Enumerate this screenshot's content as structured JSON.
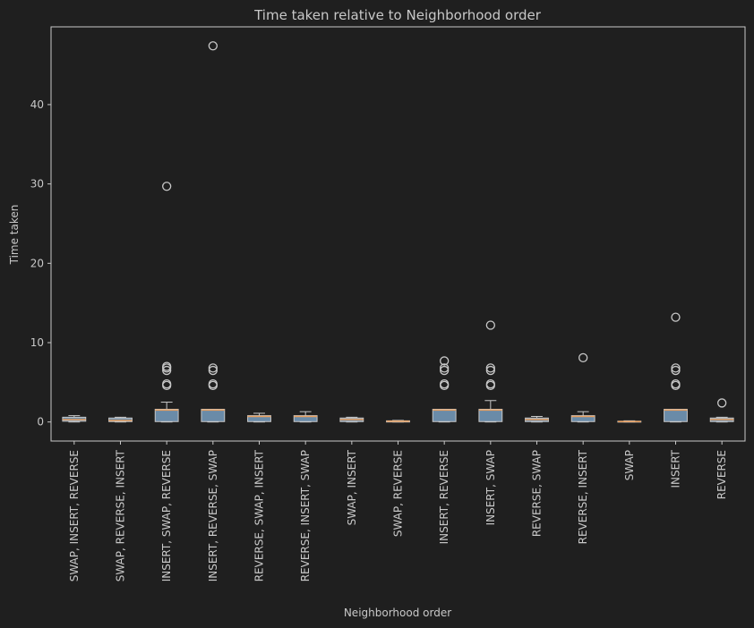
{
  "chart_data": {
    "type": "box",
    "title": "Time taken relative to Neighborhood order",
    "xlabel": "Neighborhood order",
    "ylabel": "Time taken",
    "ylim": [
      -2.4,
      49.8
    ],
    "yticks": [
      0,
      10,
      20,
      30,
      40
    ],
    "grid": false,
    "categories": [
      "SWAP, INSERT, REVERSE",
      "SWAP, REVERSE, INSERT",
      "INSERT, SWAP, REVERSE",
      "INSERT, REVERSE, SWAP",
      "REVERSE, SWAP, INSERT",
      "REVERSE, INSERT, SWAP",
      "SWAP, INSERT",
      "SWAP, REVERSE",
      "INSERT, REVERSE",
      "INSERT, SWAP",
      "REVERSE, SWAP",
      "REVERSE, INSERT",
      "SWAP",
      "INSERT",
      "REVERSE"
    ],
    "boxes": [
      {
        "whislo": 0.0,
        "q1": 0.1,
        "med": 0.3,
        "q3": 0.6,
        "whishi": 0.8,
        "fliers": []
      },
      {
        "whislo": 0.0,
        "q1": 0.05,
        "med": 0.2,
        "q3": 0.5,
        "whishi": 0.6,
        "fliers": []
      },
      {
        "whislo": 0.0,
        "q1": 0.05,
        "med": 1.5,
        "q3": 1.6,
        "whishi": 2.5,
        "fliers": [
          4.6,
          4.8,
          6.5,
          6.8,
          7.0,
          29.7
        ]
      },
      {
        "whislo": 0.0,
        "q1": 0.05,
        "med": 1.5,
        "q3": 1.6,
        "whishi": 1.6,
        "fliers": [
          4.6,
          4.8,
          6.5,
          6.8,
          47.4
        ]
      },
      {
        "whislo": 0.0,
        "q1": 0.05,
        "med": 0.7,
        "q3": 0.8,
        "whishi": 1.1,
        "fliers": []
      },
      {
        "whislo": 0.0,
        "q1": 0.05,
        "med": 0.7,
        "q3": 0.8,
        "whishi": 1.3,
        "fliers": []
      },
      {
        "whislo": 0.0,
        "q1": 0.05,
        "med": 0.3,
        "q3": 0.5,
        "whishi": 0.6,
        "fliers": []
      },
      {
        "whislo": 0.0,
        "q1": 0.0,
        "med": 0.1,
        "q3": 0.15,
        "whishi": 0.2,
        "fliers": []
      },
      {
        "whislo": 0.0,
        "q1": 0.05,
        "med": 1.5,
        "q3": 1.6,
        "whishi": 1.6,
        "fliers": [
          4.6,
          4.8,
          6.5,
          6.8,
          7.7
        ]
      },
      {
        "whislo": 0.0,
        "q1": 0.05,
        "med": 1.5,
        "q3": 1.6,
        "whishi": 2.7,
        "fliers": [
          4.6,
          4.8,
          6.5,
          6.8,
          12.2
        ]
      },
      {
        "whislo": 0.0,
        "q1": 0.05,
        "med": 0.3,
        "q3": 0.5,
        "whishi": 0.7,
        "fliers": []
      },
      {
        "whislo": 0.0,
        "q1": 0.05,
        "med": 0.7,
        "q3": 0.8,
        "whishi": 1.3,
        "fliers": [
          8.1
        ]
      },
      {
        "whislo": 0.0,
        "q1": 0.0,
        "med": 0.05,
        "q3": 0.1,
        "whishi": 0.15,
        "fliers": []
      },
      {
        "whislo": 0.0,
        "q1": 0.05,
        "med": 1.5,
        "q3": 1.6,
        "whishi": 1.6,
        "fliers": [
          4.6,
          4.8,
          6.5,
          6.8,
          13.2
        ]
      },
      {
        "whislo": 0.0,
        "q1": 0.05,
        "med": 0.3,
        "q3": 0.5,
        "whishi": 0.6,
        "fliers": [
          2.4
        ]
      }
    ],
    "colors": {
      "background": "#1f1f1f",
      "frame": "#c8c8c8",
      "text": "#c8c8c8",
      "box_fill": "#6a8ba8",
      "box_edge": "#c8c8c8",
      "median": "#e8a060",
      "whisker": "#c8c8c8",
      "flier": "#c8c8c8"
    }
  }
}
